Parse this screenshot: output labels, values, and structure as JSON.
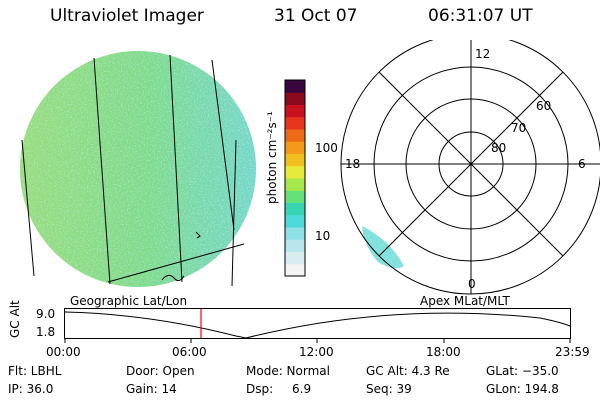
{
  "header": {
    "title": "Ultraviolet Imager",
    "date": "31 Oct 07",
    "time": "06:31:07 UT"
  },
  "colorbar": {
    "label": "photon cm⁻²s⁻¹",
    "ticks": [
      "100",
      "10"
    ],
    "colors": [
      "#f4f4f4",
      "#d9ecef",
      "#b9e6ec",
      "#8fe0e6",
      "#4cd9d9",
      "#39d4b4",
      "#66e07a",
      "#a6e84a",
      "#e6ea3a",
      "#f0c020",
      "#f39a1a",
      "#ee6a18",
      "#e8361e",
      "#c9101e",
      "#8a0a1e",
      "#3a0640"
    ]
  },
  "polar": {
    "ring_labels": [
      "60",
      "70",
      "80"
    ],
    "mlt_labels": {
      "top": "12",
      "left": "18",
      "right": "6",
      "bottom": "0"
    }
  },
  "timeline": {
    "left_title": "Geographic Lat/Lon",
    "right_title": "Apex  MLat/MLT",
    "y_label": "GC Alt",
    "y_ticks": [
      "9.0",
      "1.8"
    ],
    "x_ticks": [
      "00:00",
      "06:00",
      "12:00",
      "18:00",
      "23:59"
    ],
    "marker_color": "#ff0000"
  },
  "status": {
    "flt": "Flt: LBHL",
    "ip": "IP: 36.0",
    "door": "Door: Open",
    "gain": "Gain: 14",
    "mode": "Mode: Normal",
    "dsp_label": "Dsp:",
    "dsp_value": "6.9",
    "gcalt": "GC Alt: 4.3 Re",
    "seq": "Seq: 39",
    "glat": "GLat: −35.0",
    "glon": "GLon: 194.8"
  }
}
